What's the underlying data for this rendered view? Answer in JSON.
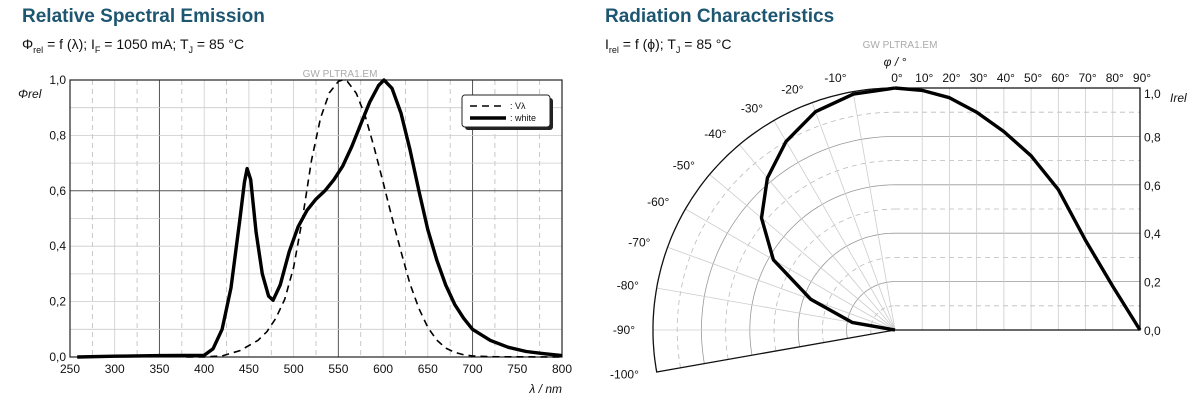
{
  "left": {
    "title": "Relative Spectral Emission",
    "subtitle": {
      "phi": "Φ",
      "rel": "rel",
      "a": " = f (λ); I",
      "F": "F",
      "b": " = 1050 mA; T",
      "J": "J",
      "c": " = 85 °C"
    }
  },
  "right": {
    "title": "Radiation Characteristics",
    "subtitle": {
      "I": "I",
      "rel": "rel",
      "a": " = f (ϕ); T",
      "J": "J",
      "c": " = 85 °C"
    }
  },
  "chart_data": [
    {
      "type": "line",
      "watermark": "GW PLTRA1.EM",
      "ylabel": "Φrel",
      "xlabel": "λ / nm",
      "xlim": [
        250,
        800
      ],
      "ylim": [
        0,
        1
      ],
      "grid": true,
      "legend_placement": "top-right",
      "x_ticks": [
        "250",
        "300",
        "350",
        "400",
        "450",
        "500",
        "550",
        "600",
        "650",
        "700",
        "750",
        "800"
      ],
      "y_ticks": [
        "0,0",
        "0,2",
        "0,4",
        "0,6",
        "0,8",
        "1,0"
      ],
      "series": [
        {
          "name": ": Vλ",
          "style": "dashed",
          "x": [
            380,
            400,
            420,
            440,
            460,
            470,
            480,
            490,
            500,
            510,
            520,
            530,
            540,
            550,
            555,
            560,
            570,
            580,
            590,
            600,
            610,
            620,
            630,
            640,
            650,
            660,
            670,
            680,
            690,
            700,
            720,
            800
          ],
          "y": [
            0,
            0.0004,
            0.004,
            0.023,
            0.06,
            0.091,
            0.139,
            0.208,
            0.323,
            0.503,
            0.71,
            0.862,
            0.954,
            0.995,
            1.0,
            0.995,
            0.952,
            0.87,
            0.757,
            0.631,
            0.503,
            0.381,
            0.265,
            0.175,
            0.107,
            0.061,
            0.032,
            0.017,
            0.008,
            0.004,
            0.001,
            0
          ]
        },
        {
          "name": ": white",
          "style": "solid",
          "x": [
            258,
            300,
            350,
            400,
            410,
            420,
            430,
            440,
            445,
            448,
            452,
            458,
            465,
            472,
            477,
            485,
            495,
            505,
            515,
            525,
            535,
            545,
            555,
            565,
            575,
            585,
            595,
            601,
            610,
            620,
            630,
            640,
            650,
            660,
            670,
            680,
            690,
            700,
            720,
            740,
            760,
            780,
            800
          ],
          "y": [
            0.0,
            0.003,
            0.005,
            0.006,
            0.03,
            0.1,
            0.25,
            0.5,
            0.63,
            0.68,
            0.64,
            0.45,
            0.3,
            0.22,
            0.205,
            0.26,
            0.38,
            0.47,
            0.53,
            0.57,
            0.6,
            0.64,
            0.69,
            0.76,
            0.84,
            0.92,
            0.98,
            1.0,
            0.97,
            0.88,
            0.75,
            0.6,
            0.46,
            0.35,
            0.26,
            0.19,
            0.14,
            0.1,
            0.06,
            0.035,
            0.02,
            0.012,
            0.005
          ]
        }
      ]
    },
    {
      "type": "polar",
      "watermark": "GW PLTRA1.EM",
      "angle_label": "φ / °",
      "r_label": "Irel",
      "angle_ticks_left": [
        "-10°",
        "-20°",
        "-30°",
        "-40°",
        "-50°",
        "-60°",
        "-70°",
        "-80°",
        "-90°",
        "-100°"
      ],
      "angle_ticks_top": [
        "0°",
        "10°",
        "20°",
        "30°",
        "40°",
        "50°",
        "60°",
        "70°",
        "80°",
        "90°"
      ],
      "r_ticks": [
        "0,0",
        "0,2",
        "0,4",
        "0,6",
        "0,8",
        "1,0"
      ],
      "rlim": [
        0,
        1
      ],
      "series": [
        {
          "angle_deg": [
            0,
            10,
            20,
            30,
            40,
            50,
            60,
            70,
            80,
            90
          ],
          "I_rel": [
            1.0,
            0.99,
            0.96,
            0.9,
            0.82,
            0.72,
            0.58,
            0.37,
            0.18,
            0.0
          ]
        }
      ]
    }
  ]
}
